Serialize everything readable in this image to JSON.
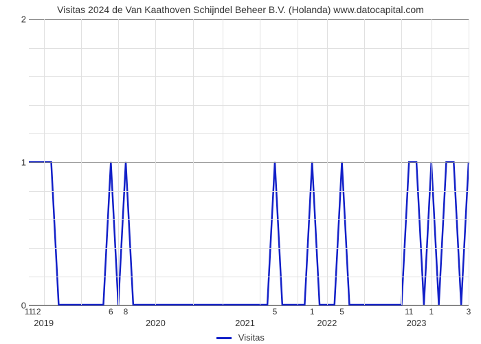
{
  "title": "Visitas 2024 de Van Kaathoven Schijndel Beheer B.V. (Holanda) www.datocapital.com",
  "chart": {
    "type": "line",
    "background_color": "#ffffff",
    "grid_color": "#e0e0e0",
    "axis_color": "#888888",
    "line_color": "#1220c8",
    "line_width": 2.5,
    "ylim": [
      0,
      2
    ],
    "yticks": [
      0,
      1,
      2
    ],
    "yminor_count": 4,
    "title_fontsize": 14,
    "tick_fontsize": 13,
    "n_points": 60,
    "values": [
      1,
      1,
      1,
      1,
      0,
      0,
      0,
      0,
      0,
      0,
      0,
      1,
      0,
      1,
      0,
      0,
      0,
      0,
      0,
      0,
      0,
      0,
      0,
      0,
      0,
      0,
      0,
      0,
      0,
      0,
      0,
      0,
      0,
      1,
      0,
      0,
      0,
      0,
      1,
      0,
      0,
      0,
      1,
      0,
      0,
      0,
      0,
      0,
      0,
      0,
      0,
      1,
      1,
      0,
      1,
      0,
      1,
      1,
      0,
      1
    ],
    "month_markers": [
      {
        "pos": 0,
        "label": "11"
      },
      {
        "pos": 1,
        "label": "12"
      },
      {
        "pos": 11,
        "label": "6"
      },
      {
        "pos": 13,
        "label": "8"
      },
      {
        "pos": 33,
        "label": "5"
      },
      {
        "pos": 38,
        "label": "1"
      },
      {
        "pos": 42,
        "label": "5"
      },
      {
        "pos": 51,
        "label": "11"
      },
      {
        "pos": 54,
        "label": "1"
      },
      {
        "pos": 59,
        "label": "3"
      }
    ],
    "year_markers": [
      {
        "pos": 2,
        "label": "2019"
      },
      {
        "pos": 17,
        "label": "2020"
      },
      {
        "pos": 29,
        "label": "2021"
      },
      {
        "pos": 40,
        "label": "2022"
      },
      {
        "pos": 52,
        "label": "2023"
      }
    ],
    "vgrid_positions": [
      2,
      7,
      12,
      17,
      22,
      26,
      31,
      36,
      40,
      45,
      50,
      54,
      59
    ],
    "legend_label": "Visitas"
  }
}
